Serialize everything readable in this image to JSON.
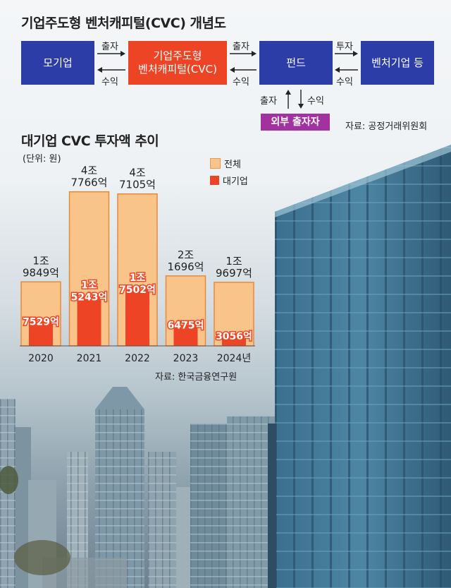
{
  "diagram": {
    "title": "기업주도형 벤처캐피털(CVC) 개념도",
    "box_parent": "모기업",
    "box_cvc_line1": "기업주도형",
    "box_cvc_line2": "벤처캐피털(CVC)",
    "box_fund": "펀드",
    "box_venture": "벤처기업 등",
    "box_external": "외부 출자자",
    "arrow1_top": "출자",
    "arrow1_bottom": "수익",
    "arrow2_top": "출자",
    "arrow2_bottom": "수익",
    "arrow3_top": "투자",
    "arrow3_bottom": "수익",
    "arrow4_left": "출자",
    "arrow4_right": "수익",
    "source": "자료: 공정거래위원회",
    "colors": {
      "blue": "#2c3da8",
      "red": "#ee4426",
      "purple": "#a132a0"
    }
  },
  "chart_data": {
    "type": "bar",
    "title": "대기업 CVC 투자액 추이",
    "unit": "(단위: 원)",
    "categories": [
      "2020",
      "2021",
      "2022",
      "2023",
      "2024년"
    ],
    "series": [
      {
        "name": "전체",
        "color": "#f9c489",
        "values": [
          19849,
          47766,
          47105,
          21696,
          19697
        ],
        "labels": [
          [
            "1조",
            "9849억"
          ],
          [
            "4조",
            "7766억"
          ],
          [
            "4조",
            "7105억"
          ],
          [
            "2조",
            "1696억"
          ],
          [
            "1조",
            "9697억"
          ]
        ]
      },
      {
        "name": "대기업",
        "color": "#ee4426",
        "values": [
          7529,
          15243,
          17502,
          6475,
          3056
        ],
        "labels": [
          [
            "7529억"
          ],
          [
            "1조",
            "5243억"
          ],
          [
            "1조",
            "7502억"
          ],
          [
            "6475억"
          ],
          [
            "3056억"
          ]
        ]
      }
    ],
    "legend_position": "top-right",
    "source": "자료: 한국금융연구원"
  }
}
